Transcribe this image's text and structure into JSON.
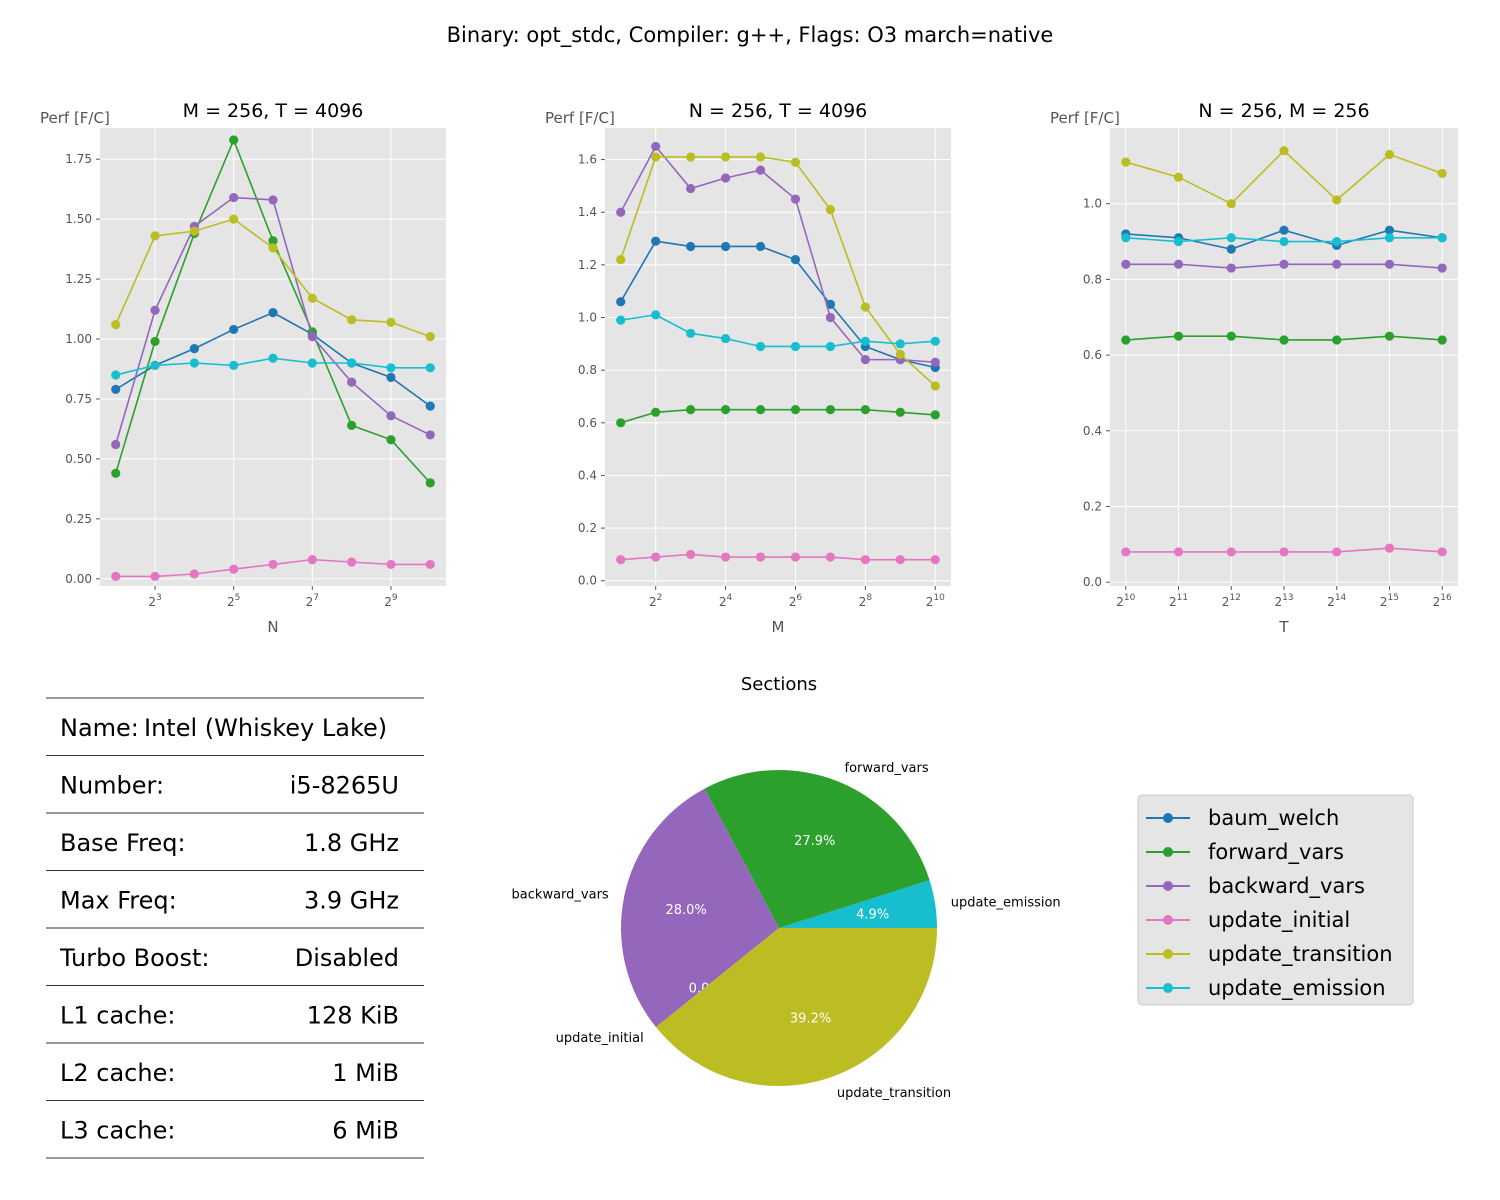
{
  "suptitle": "Binary: opt_stdc, Compiler: g++, Flags: O3 march=native",
  "colors": {
    "baum_welch": "#1f77b4",
    "forward_vars": "#2ca02c",
    "backward_vars": "#9467bd",
    "update_initial": "#e377c2",
    "update_transition": "#bcbd22",
    "update_emission": "#17becf",
    "axes_bg": "#e5e5e5"
  },
  "chart_data": [
    {
      "type": "line",
      "title": "M = 256, T = 4096",
      "ylabel": "Perf [F/C]",
      "xlabel": "N",
      "x": [
        4,
        8,
        16,
        32,
        64,
        128,
        256,
        512,
        1024
      ],
      "xscale": "log2",
      "xticks": [
        8,
        32,
        128,
        512
      ],
      "xtick_labels": [
        "2^3",
        "2^5",
        "2^7",
        "2^9"
      ],
      "ylim": [
        -0.03,
        1.88
      ],
      "yticks": [
        0.0,
        0.25,
        0.5,
        0.75,
        1.0,
        1.25,
        1.5,
        1.75
      ],
      "ytick_labels": [
        "0.00",
        "0.25",
        "0.50",
        "0.75",
        "1.00",
        "1.25",
        "1.50",
        "1.75"
      ],
      "grid": true,
      "series": [
        {
          "name": "baum_welch",
          "values": [
            0.79,
            0.89,
            0.96,
            1.04,
            1.11,
            1.02,
            0.9,
            0.84,
            0.72
          ]
        },
        {
          "name": "forward_vars",
          "values": [
            0.44,
            0.99,
            1.44,
            1.83,
            1.41,
            1.03,
            0.64,
            0.58,
            0.4
          ]
        },
        {
          "name": "backward_vars",
          "values": [
            0.56,
            1.12,
            1.47,
            1.59,
            1.58,
            1.01,
            0.82,
            0.68,
            0.6
          ]
        },
        {
          "name": "update_initial",
          "values": [
            0.01,
            0.01,
            0.02,
            0.04,
            0.06,
            0.08,
            0.07,
            0.06,
            0.06
          ]
        },
        {
          "name": "update_transition",
          "values": [
            1.06,
            1.43,
            1.45,
            1.5,
            1.38,
            1.17,
            1.08,
            1.07,
            1.01
          ]
        },
        {
          "name": "update_emission",
          "values": [
            0.85,
            0.89,
            0.9,
            0.89,
            0.92,
            0.9,
            0.9,
            0.88,
            0.88
          ]
        }
      ]
    },
    {
      "type": "line",
      "title": "N = 256, T = 4096",
      "ylabel": "Perf [F/C]",
      "xlabel": "M",
      "x": [
        2,
        4,
        8,
        16,
        32,
        64,
        128,
        256,
        512,
        1024
      ],
      "xscale": "log2",
      "xticks": [
        4,
        16,
        64,
        256,
        1024
      ],
      "xtick_labels": [
        "2^2",
        "2^4",
        "2^6",
        "2^8",
        "2^10"
      ],
      "ylim": [
        -0.02,
        1.72
      ],
      "yticks": [
        0.0,
        0.2,
        0.4,
        0.6,
        0.8,
        1.0,
        1.2,
        1.4,
        1.6
      ],
      "ytick_labels": [
        "0.0",
        "0.2",
        "0.4",
        "0.6",
        "0.8",
        "1.0",
        "1.2",
        "1.4",
        "1.6"
      ],
      "grid": true,
      "series": [
        {
          "name": "baum_welch",
          "values": [
            1.06,
            1.29,
            1.27,
            1.27,
            1.27,
            1.22,
            1.05,
            0.89,
            0.84,
            0.81
          ]
        },
        {
          "name": "forward_vars",
          "values": [
            0.6,
            0.64,
            0.65,
            0.65,
            0.65,
            0.65,
            0.65,
            0.65,
            0.64,
            0.63
          ]
        },
        {
          "name": "backward_vars",
          "values": [
            1.4,
            1.65,
            1.49,
            1.53,
            1.56,
            1.45,
            1.0,
            0.84,
            0.84,
            0.83
          ]
        },
        {
          "name": "update_initial",
          "values": [
            0.08,
            0.09,
            0.1,
            0.09,
            0.09,
            0.09,
            0.09,
            0.08,
            0.08,
            0.08
          ]
        },
        {
          "name": "update_transition",
          "values": [
            1.22,
            1.61,
            1.61,
            1.61,
            1.61,
            1.59,
            1.41,
            1.04,
            0.86,
            0.74
          ]
        },
        {
          "name": "update_emission",
          "values": [
            0.99,
            1.01,
            0.94,
            0.92,
            0.89,
            0.89,
            0.89,
            0.91,
            0.9,
            0.91
          ]
        }
      ]
    },
    {
      "type": "line",
      "title": "N = 256, M = 256",
      "ylabel": "Perf [F/C]",
      "xlabel": "T",
      "x": [
        1024,
        2048,
        4096,
        8192,
        16384,
        32768,
        65536
      ],
      "xscale": "log2",
      "xticks": [
        1024,
        2048,
        4096,
        8192,
        16384,
        32768,
        65536
      ],
      "xtick_labels": [
        "2^10",
        "2^11",
        "2^12",
        "2^13",
        "2^14",
        "2^15",
        "2^16"
      ],
      "ylim": [
        -0.01,
        1.2
      ],
      "yticks": [
        0.0,
        0.2,
        0.4,
        0.6,
        0.8,
        1.0
      ],
      "ytick_labels": [
        "0.0",
        "0.2",
        "0.4",
        "0.6",
        "0.8",
        "1.0"
      ],
      "grid": true,
      "series": [
        {
          "name": "baum_welch",
          "values": [
            0.92,
            0.91,
            0.88,
            0.93,
            0.89,
            0.93,
            0.91
          ]
        },
        {
          "name": "forward_vars",
          "values": [
            0.64,
            0.65,
            0.65,
            0.64,
            0.64,
            0.65,
            0.64
          ]
        },
        {
          "name": "backward_vars",
          "values": [
            0.84,
            0.84,
            0.83,
            0.84,
            0.84,
            0.84,
            0.83
          ]
        },
        {
          "name": "update_initial",
          "values": [
            0.08,
            0.08,
            0.08,
            0.08,
            0.08,
            0.09,
            0.08
          ]
        },
        {
          "name": "update_transition",
          "values": [
            1.11,
            1.07,
            1.0,
            1.14,
            1.01,
            1.13,
            1.08
          ]
        },
        {
          "name": "update_emission",
          "values": [
            0.91,
            0.9,
            0.91,
            0.9,
            0.9,
            0.91,
            0.91
          ]
        }
      ]
    },
    {
      "type": "pie",
      "title": "Sections",
      "start_angle_deg": 0,
      "counterclockwise": true,
      "slices": [
        {
          "label": "update_emission",
          "value": 4.9,
          "pct_label": "4.9%"
        },
        {
          "label": "forward_vars",
          "value": 27.9,
          "pct_label": "27.9%"
        },
        {
          "label": "backward_vars",
          "value": 28.0,
          "pct_label": "28.0%"
        },
        {
          "label": "update_initial",
          "value": 0.0,
          "pct_label": "0.0%"
        },
        {
          "label": "update_transition",
          "value": 39.2,
          "pct_label": "39.2%"
        }
      ]
    }
  ],
  "legend": {
    "placement": "right",
    "entries": [
      "baum_welch",
      "forward_vars",
      "backward_vars",
      "update_initial",
      "update_transition",
      "update_emission"
    ]
  },
  "info_table": {
    "rows": [
      {
        "label": "Name:",
        "value": "Intel (Whiskey Lake)"
      },
      {
        "label": "Number:",
        "value": "i5-8265U"
      },
      {
        "label": "Base Freq:",
        "value": "1.8 GHz"
      },
      {
        "label": "Max Freq:",
        "value": "3.9 GHz"
      },
      {
        "label": "Turbo Boost:",
        "value": "Disabled"
      },
      {
        "label": "L1 cache:",
        "value": "128 KiB"
      },
      {
        "label": "L2 cache:",
        "value": "1 MiB"
      },
      {
        "label": "L3 cache:",
        "value": "6 MiB"
      }
    ]
  }
}
